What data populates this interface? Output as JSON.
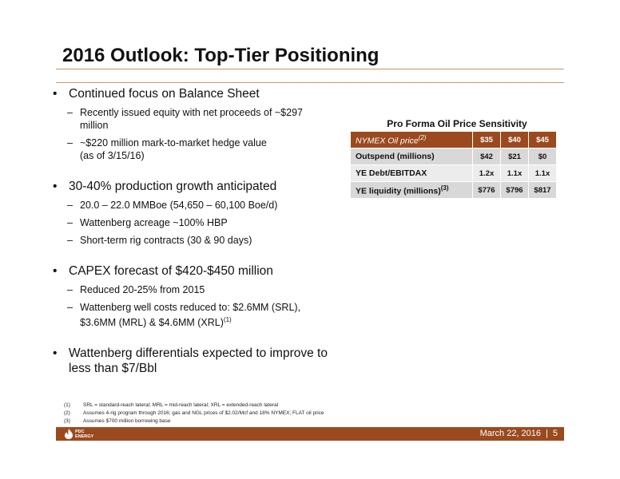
{
  "title": "2016 Outlook: Top-Tier Positioning",
  "bullets": [
    {
      "text": "Continued focus on Balance Sheet",
      "subs": [
        {
          "line1": "Recently issued equity with net proceeds of ~$297",
          "line2": "million"
        },
        {
          "line1": "~$220 million mark-to-market hedge value",
          "line2": "(as of 3/15/16)"
        }
      ]
    },
    {
      "text": "30-40% production growth anticipated",
      "subs": [
        {
          "line1": "20.0 – 22.0 MMBoe (54,650 – 60,100 Boe/d)"
        },
        {
          "line1": "Wattenberg acreage ~100% HBP"
        },
        {
          "line1": "Short-term rig contracts (30 & 90 days)"
        }
      ]
    },
    {
      "text": "CAPEX forecast of $420-$450 million",
      "subs": [
        {
          "line1": "Reduced 20-25% from 2015"
        },
        {
          "line1": "Wattenberg well costs reduced to: $2.6MM (SRL),",
          "line2": "$3.6MM (MRL) & $4.6MM (XRL)",
          "sup": "(1)"
        }
      ]
    },
    {
      "text": "Wattenberg differentials expected to improve to",
      "text2": "less than $7/Bbl",
      "subs": []
    }
  ],
  "table": {
    "title": "Pro Forma Oil Price Sensitivity",
    "header_label": "NYMEX Oil price",
    "header_sup": "(2)",
    "prices": [
      "$35",
      "$40",
      "$45"
    ],
    "rows": [
      {
        "label": "Outspend (millions)",
        "sup": "",
        "values": [
          "$42",
          "$21",
          "$0"
        ]
      },
      {
        "label": "YE Debt/EBITDAX",
        "sup": "",
        "values": [
          "1.2x",
          "1.1x",
          "1.1x"
        ]
      },
      {
        "label": "YE liquidity (millions)",
        "sup": "(3)",
        "values": [
          "$776",
          "$796",
          "$817"
        ]
      }
    ]
  },
  "footnotes": [
    {
      "num": "(1)",
      "text": "SRL = standard-reach lateral; MRL = mid-reach lateral; XRL = extended-reach lateral"
    },
    {
      "num": "(2)",
      "text": "Assumes 4-rig program through 2016; gas and NGL prices of $2.02/Mcf and 18% NYMEX; FLAT oil price"
    },
    {
      "num": "(3)",
      "text": "Assumes $700 million borrowing base"
    }
  ],
  "footer": {
    "logo_line1": "PDC",
    "logo_line2": "ENERGY",
    "date": "March 22, 2016",
    "separator": "|",
    "page": "5"
  },
  "colors": {
    "accent": "#9a4a1e",
    "rule": "#c8956a"
  }
}
